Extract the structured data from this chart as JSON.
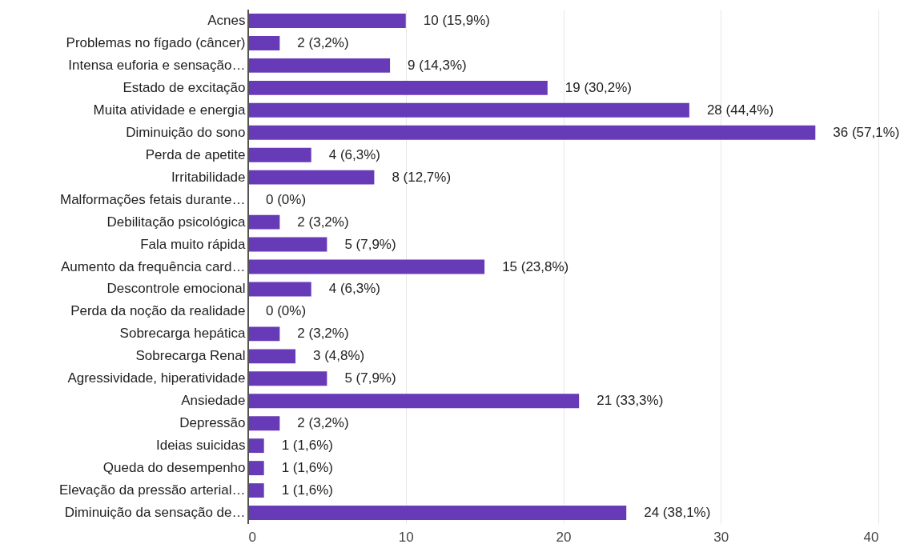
{
  "chart_data": {
    "type": "bar",
    "orientation": "horizontal",
    "color": "#673ab7",
    "categories": [
      "Acnes",
      "Problemas no fígado (câncer)",
      "Intensa euforia e sensação…",
      "Estado de excitação",
      "Muita atividade e energia",
      "Diminuição do sono",
      "Perda de apetite",
      "Irritabilidade",
      "Malformações fetais durante…",
      "Debilitação psicológica",
      "Fala muito rápida",
      "Aumento da frequência card…",
      "Descontrole emocional",
      "Perda da noção da realidade",
      "Sobrecarga hepática",
      "Sobrecarga Renal",
      "Agressividade, hiperatividade",
      "Ansiedade",
      "Depressão",
      "Ideias suicidas",
      "Queda do desempenho",
      "Elevação da pressão arterial…",
      "Diminuição da sensação de…"
    ],
    "values": [
      10,
      2,
      9,
      19,
      28,
      36,
      4,
      8,
      0,
      2,
      5,
      15,
      4,
      0,
      2,
      3,
      5,
      21,
      2,
      1,
      1,
      1,
      24
    ],
    "value_labels": [
      "10 (15,9%)",
      "2 (3,2%)",
      "9 (14,3%)",
      "19 (30,2%)",
      "28 (44,4%)",
      "36 (57,1%)",
      "4 (6,3%)",
      "8 (12,7%)",
      "0 (0%)",
      "2 (3,2%)",
      "5 (7,9%)",
      "15 (23,8%)",
      "4 (6,3%)",
      "0 (0%)",
      "2 (3,2%)",
      "3 (4,8%)",
      "5 (7,9%)",
      "21 (33,3%)",
      "2 (3,2%)",
      "1 (1,6%)",
      "1 (1,6%)",
      "1 (1,6%)",
      "24 (38,1%)"
    ],
    "xlim": [
      0,
      40
    ],
    "xticks": [
      0,
      10,
      20,
      30,
      40
    ],
    "grid": "x"
  }
}
